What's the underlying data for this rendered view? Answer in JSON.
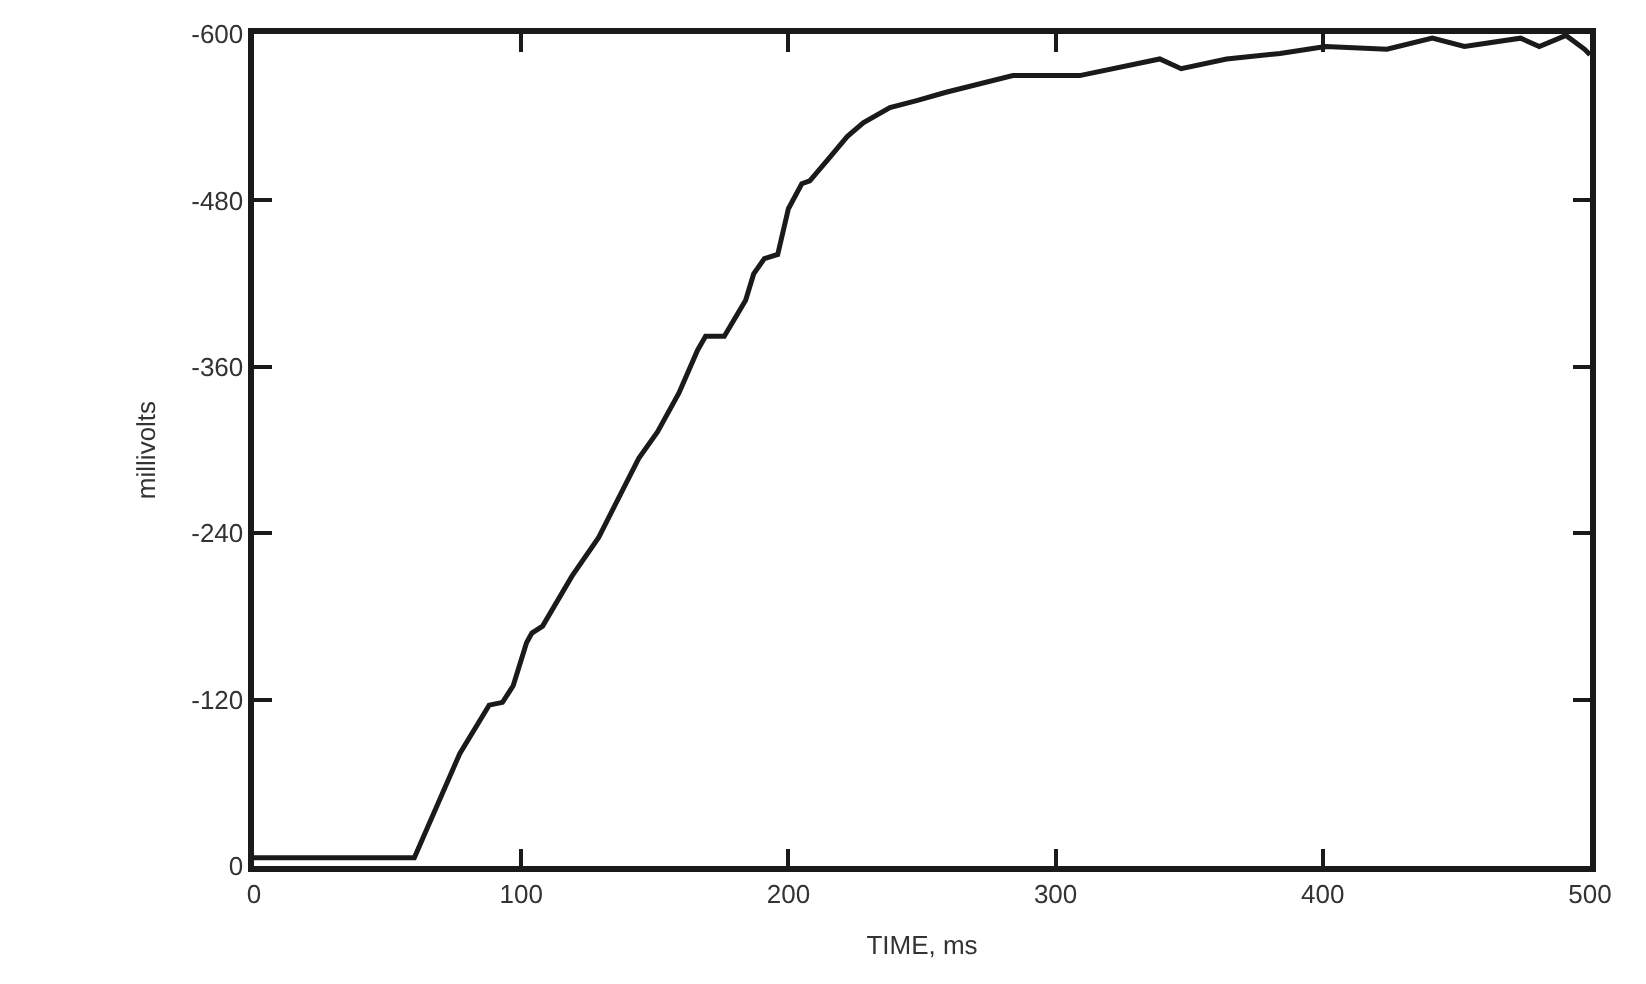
{
  "chart_data": {
    "type": "line",
    "xlabel": "TIME, ms",
    "ylabel": "millivolts",
    "x": [
      0,
      60,
      77,
      88,
      93,
      97,
      102,
      104,
      108,
      119,
      129,
      139,
      144,
      151,
      159,
      166,
      169,
      176,
      184,
      187,
      191,
      196,
      200,
      205,
      208,
      215,
      222,
      228,
      238,
      248,
      259,
      284,
      309,
      339,
      347,
      364,
      384,
      401,
      424,
      441,
      453,
      474,
      481,
      491,
      498,
      500
    ],
    "series": [
      {
        "color": "#1a1a1a",
        "values": [
          -6,
          -6,
          -81,
          -116,
          -118,
          -130,
          -161,
          -168,
          -173,
          -209,
          -237,
          -275,
          -294,
          -313,
          -341,
          -372,
          -382,
          -382,
          -408,
          -427,
          -438,
          -441,
          -474,
          -492,
          -494,
          -510,
          -526,
          -536,
          -547,
          -552,
          -558,
          -570,
          -570,
          -582,
          -575,
          -582,
          -586,
          -591,
          -589,
          -597,
          -591,
          -597,
          -591,
          -599,
          -589,
          -585
        ]
      }
    ],
    "xlim": [
      0,
      500
    ],
    "xticks": [
      0,
      100,
      200,
      300,
      400,
      500
    ],
    "ylim": [
      0,
      -600
    ],
    "yticks": [
      0,
      -120,
      -240,
      -360,
      -480,
      -600
    ],
    "marker": "none",
    "line_style": "solid"
  }
}
